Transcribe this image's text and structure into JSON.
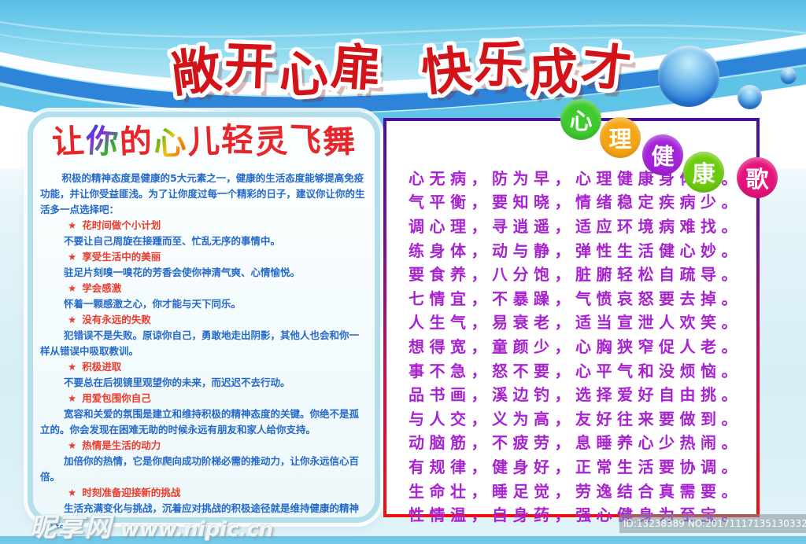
{
  "header": {
    "title": "敞开心扉 快乐成才",
    "title_chars": [
      "敞",
      "开",
      "心",
      "扉",
      "快",
      "乐",
      "成",
      "才"
    ],
    "title_color": "#d31317"
  },
  "left_panel": {
    "title": "让你的心儿轻灵飞舞",
    "title_chars": [
      "让",
      "你",
      "的",
      "心",
      "儿",
      "轻",
      "灵",
      "飞",
      "舞"
    ],
    "intro": "积极的精神态度是健康的5大元素之一，健康的生活态度能够提高免疫功能，并让你受益匪浅。为了让你度过每一个精彩的日子，建议你让你的生活多一点选择吧：",
    "bullet": "★",
    "items": [
      {
        "heading": "花时间做个小计划",
        "body": "不要让自己周旋在接踵而至、忙乱无序的事情中。"
      },
      {
        "heading": "享受生活中的美丽",
        "body": "驻足片刻嗅一嗅花的芳香会使你神清气爽、心情愉悦。"
      },
      {
        "heading": "学会感激",
        "body": "怀着一颗感激之心，你才能与天下同乐。"
      },
      {
        "heading": "没有永远的失败",
        "body": "犯错误不是失败。原谅你自己，勇敢地走出阴影，其他人也会和你一样从错误中吸取教训。"
      },
      {
        "heading": "积极进取",
        "body": "不要总在后视镜里观望你的未来，而迟迟不去行动。"
      },
      {
        "heading": "用爱包围你自己",
        "body": "宽容和关爱的氛围是建立和维持积极的精神态度的关键。你绝不是孤立的。你会发现在困难无助的时候永远有朋友和家人给你支持。"
      },
      {
        "heading": "热情是生活的动力",
        "body": "加倍你的热情，它是你爬向成功阶梯必需的推动力，让你永远信心百倍。"
      },
      {
        "heading": "时刻准备迎接新的挑战",
        "body": "生活充满变化与挑战，沉着应对挑战的积极途径就是维持健康的精神态度。"
      }
    ]
  },
  "right_panel": {
    "badges": [
      {
        "char": "心",
        "color": "#3fca2e"
      },
      {
        "char": "理",
        "color": "#f6a513"
      },
      {
        "char": "健",
        "color": "#a424da"
      },
      {
        "char": "康",
        "color": "#6ecc0e"
      },
      {
        "char": "歌",
        "color": "#e5137b"
      }
    ],
    "lines": [
      "心无病，防为早，心理健康身体好。",
      "气平衡，要知晓，情绪稳定疾病少。",
      "调心理，寻逍遥，适应环境病难找。",
      "练身体，动与静，弹性生活健心妙。",
      "要食养，八分饱，脏腑轻松自疏导。",
      "七情宜，不暴躁，气愤哀怒要去掉。",
      "人生气，易衰老，适当宣泄人欢笑。",
      "想得宽，童颜少，心胸狭窄促人老。",
      "事不急，怒不要，心平气和没烦恼。",
      "品书画，溪边钓，选择爱好自由挑。",
      "与人交，义为高，友好往来要做到。",
      "动脑筋，不疲劳，息睡养心少热闹。",
      "有规律，健身好，正常生活要协调。",
      "生命壮，睡足觉，劳逸结合真需要。",
      "性情温，自身药，强心健身为至宝。"
    ]
  },
  "watermark": {
    "site_name": "昵享网",
    "site_url": "www.nipic.cn"
  },
  "footer_id": "ID:13238389 NO:20171117135130332000",
  "colors": {
    "body_text_blue": "#2569c9",
    "highlight_red": "#ee3a2a",
    "lyrics_purple": "#a822d2",
    "left_panel_border": "#b2dfe9",
    "wave_blue": "#2d84d8",
    "wave_cyan": "#54bfe6"
  }
}
